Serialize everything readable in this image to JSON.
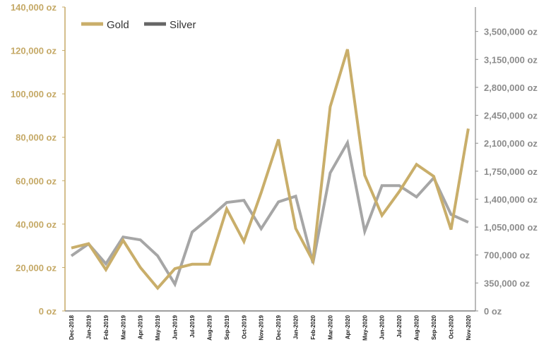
{
  "chart_data": {
    "type": "line",
    "title": "",
    "categories": [
      "Dec-2018",
      "Jan-2019",
      "Feb-2019",
      "Mar-2019",
      "Apr-2019",
      "May-2019",
      "Jun-2019",
      "Jul-2019",
      "Aug-2019",
      "Sep-2019",
      "Oct-2019",
      "Nov-2019",
      "Dec-2019",
      "Jan-2020",
      "Feb-2020",
      "Mar-2020",
      "Apr-2020",
      "May-2020",
      "Jun-2020",
      "Jul-2020",
      "Aug-2020",
      "Sep-2020",
      "Oct-2020",
      "Nov-2020"
    ],
    "series": [
      {
        "name": "Gold",
        "axis": "left",
        "color": "#c9ae6a",
        "values": [
          29000,
          31000,
          19000,
          32500,
          20000,
          10500,
          19500,
          21500,
          21500,
          47000,
          32000,
          54500,
          79000,
          38000,
          23000,
          94000,
          120500,
          62500,
          44000,
          55000,
          67500,
          62000,
          37500,
          84000
        ]
      },
      {
        "name": "Silver",
        "axis": "right",
        "color": "#a6a6a6",
        "legend_color": "#666666",
        "values": [
          690000,
          840000,
          590000,
          925000,
          890000,
          690000,
          335000,
          987000,
          1165000,
          1358000,
          1385000,
          1030000,
          1366000,
          1437000,
          600000,
          1728000,
          2107000,
          996000,
          1569000,
          1569000,
          1428000,
          1666000,
          1208000,
          1111000
        ]
      }
    ],
    "left_axis": {
      "ylim": [
        0,
        140000
      ],
      "ticks": [
        "0 oz",
        "20,000 oz",
        "40,000 oz",
        "60,000 oz",
        "80,000 oz",
        "100,000 oz",
        "120,000 oz",
        "140,000 oz"
      ],
      "tick_values": [
        0,
        20000,
        40000,
        60000,
        80000,
        100000,
        120000,
        140000
      ],
      "color": "#c5a966"
    },
    "right_axis": {
      "ylim": [
        0,
        3850000
      ],
      "ticks": [
        "0 oz",
        "350,000 oz",
        "700,000 oz",
        "1,050,000 oz",
        "1,400,000 oz",
        "1,750,000 oz",
        "2,100,000 oz",
        "2,450,000 oz",
        "2,800,000 oz",
        "3,150,000 oz",
        "3,500,000 oz"
      ],
      "tick_values": [
        0,
        350000,
        700000,
        1050000,
        1400000,
        1750000,
        2100000,
        2450000,
        2800000,
        3150000,
        3500000
      ],
      "color": "#8c8c8c"
    },
    "legend": {
      "placement": "top-left",
      "entries": [
        "Gold",
        "Silver"
      ]
    },
    "grid": false
  }
}
